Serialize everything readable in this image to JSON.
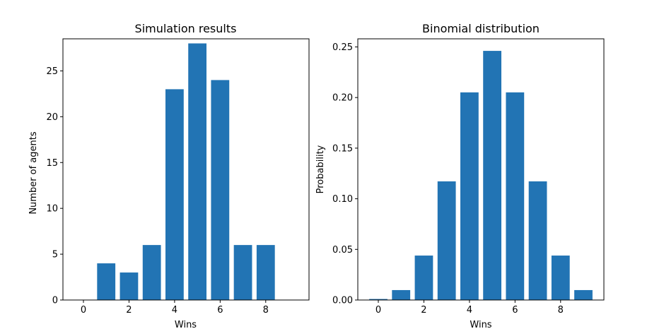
{
  "chart_data": [
    {
      "type": "bar",
      "title": "Simulation results",
      "xlabel": "Wins",
      "ylabel": "Number of agents",
      "x": [
        1,
        2,
        3,
        4,
        5,
        6,
        7,
        8
      ],
      "values": [
        4,
        3,
        6,
        23,
        28,
        24,
        6,
        6
      ],
      "xlim": [
        -0.9,
        9.9
      ],
      "ylim": [
        0,
        28.5
      ],
      "xticks": [
        0,
        2,
        4,
        6,
        8
      ],
      "yticks": [
        0,
        5,
        10,
        15,
        20,
        25
      ],
      "ytick_labels": [
        "0",
        "5",
        "10",
        "15",
        "20",
        "25"
      ],
      "color": "#2274b4",
      "grid": false,
      "legend": "none"
    },
    {
      "type": "bar",
      "title": "Binomial distribution",
      "xlabel": "Wins",
      "ylabel": "Probability",
      "x": [
        0,
        1,
        2,
        3,
        4,
        5,
        6,
        7,
        8,
        9
      ],
      "values": [
        0.001,
        0.0098,
        0.0439,
        0.1172,
        0.2051,
        0.2461,
        0.2051,
        0.1172,
        0.0439,
        0.0098
      ],
      "xlim": [
        -0.9,
        9.9
      ],
      "ylim": [
        0,
        0.258
      ],
      "xticks": [
        0,
        2,
        4,
        6,
        8
      ],
      "yticks": [
        0,
        0.05,
        0.1,
        0.15,
        0.2,
        0.25
      ],
      "ytick_labels": [
        "0.00",
        "0.05",
        "0.10",
        "0.15",
        "0.20",
        "0.25"
      ],
      "color": "#2274b4",
      "grid": false,
      "legend": "none"
    }
  ]
}
